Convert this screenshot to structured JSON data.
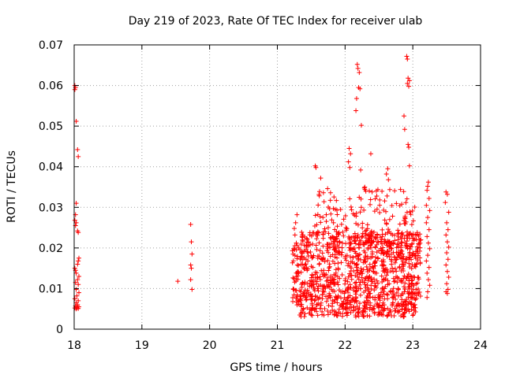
{
  "chart_data": {
    "type": "scatter",
    "title": "Day 219 of 2023, Rate Of TEC Index for receiver ulab",
    "xlabel": "GPS time / hours",
    "ylabel": "ROTI / TECUs",
    "xlim": [
      18,
      24
    ],
    "ylim": [
      0,
      0.07
    ],
    "xticks": [
      18,
      19,
      20,
      21,
      22,
      23,
      24
    ],
    "yticks": [
      0,
      0.01,
      0.02,
      0.03,
      0.04,
      0.05,
      0.06,
      0.07
    ],
    "xtick_labels": [
      "18",
      "19",
      "20",
      "21",
      "22",
      "23",
      "24"
    ],
    "ytick_labels": [
      "0",
      "0.01",
      "0.02",
      "0.03",
      "0.04",
      "0.05",
      "0.06",
      "0.07"
    ],
    "grid": true,
    "marker": "+",
    "color": "#ff0000",
    "series": [
      {
        "name": "ROTI",
        "points": [
          [
            18.01,
            0.06
          ],
          [
            18.02,
            0.0595
          ],
          [
            18.01,
            0.059
          ],
          [
            18.03,
            0.0512
          ],
          [
            18.05,
            0.0442
          ],
          [
            18.06,
            0.0425
          ],
          [
            18.03,
            0.031
          ],
          [
            18.02,
            0.0282
          ],
          [
            18.01,
            0.0268
          ],
          [
            18.03,
            0.0262
          ],
          [
            18.02,
            0.0255
          ],
          [
            18.05,
            0.0242
          ],
          [
            18.06,
            0.0238
          ],
          [
            18.07,
            0.0175
          ],
          [
            18.06,
            0.0168
          ],
          [
            18.05,
            0.016
          ],
          [
            18.01,
            0.015
          ],
          [
            18.02,
            0.0145
          ],
          [
            18.03,
            0.0138
          ],
          [
            18.07,
            0.013
          ],
          [
            18.05,
            0.0122
          ],
          [
            18.02,
            0.0115
          ],
          [
            18.06,
            0.011
          ],
          [
            18.03,
            0.0098
          ],
          [
            18.07,
            0.009
          ],
          [
            18.04,
            0.0082
          ],
          [
            18.01,
            0.0075
          ],
          [
            18.06,
            0.007
          ],
          [
            18.03,
            0.0065
          ],
          [
            18.05,
            0.006
          ],
          [
            18.02,
            0.0057
          ],
          [
            18.07,
            0.0055
          ],
          [
            18.04,
            0.0053
          ],
          [
            18.01,
            0.0052
          ],
          [
            18.06,
            0.0051
          ],
          [
            18.03,
            0.005
          ],
          [
            19.53,
            0.0118
          ],
          [
            19.72,
            0.0258
          ],
          [
            19.73,
            0.0215
          ],
          [
            19.74,
            0.0185
          ],
          [
            19.72,
            0.0158
          ],
          [
            19.73,
            0.015
          ],
          [
            19.72,
            0.0122
          ],
          [
            19.74,
            0.0098
          ],
          [
            21.29,
            0.0282
          ],
          [
            21.27,
            0.0262
          ],
          [
            21.25,
            0.0248
          ],
          [
            21.26,
            0.0232
          ],
          [
            21.28,
            0.0212
          ],
          [
            21.24,
            0.0198
          ],
          [
            21.56,
            0.0402
          ],
          [
            21.57,
            0.0398
          ],
          [
            21.64,
            0.0372
          ],
          [
            22.06,
            0.0445
          ],
          [
            22.08,
            0.0432
          ],
          [
            22.05,
            0.0412
          ],
          [
            22.07,
            0.0398
          ],
          [
            22.18,
            0.0652
          ],
          [
            22.19,
            0.0642
          ],
          [
            22.21,
            0.0632
          ],
          [
            22.2,
            0.0595
          ],
          [
            22.22,
            0.0592
          ],
          [
            22.17,
            0.0568
          ],
          [
            22.16,
            0.0538
          ],
          [
            22.24,
            0.0502
          ],
          [
            22.23,
            0.0392
          ],
          [
            22.38,
            0.0432
          ],
          [
            22.63,
            0.0395
          ],
          [
            22.61,
            0.0382
          ],
          [
            22.64,
            0.0368
          ],
          [
            22.91,
            0.0672
          ],
          [
            22.92,
            0.0665
          ],
          [
            22.93,
            0.0618
          ],
          [
            22.95,
            0.0612
          ],
          [
            22.92,
            0.0605
          ],
          [
            22.94,
            0.0598
          ],
          [
            22.87,
            0.0525
          ],
          [
            22.88,
            0.0492
          ],
          [
            22.93,
            0.0455
          ],
          [
            22.94,
            0.0448
          ],
          [
            22.95,
            0.0402
          ],
          [
            23.23,
            0.0362
          ],
          [
            23.22,
            0.0352
          ],
          [
            23.21,
            0.0342
          ],
          [
            23.49,
            0.0338
          ],
          [
            23.51,
            0.0332
          ],
          [
            23.24,
            0.0322
          ],
          [
            23.2,
            0.0305
          ],
          [
            23.25,
            0.0292
          ],
          [
            23.48,
            0.0312
          ],
          [
            23.53,
            0.0288
          ],
          [
            23.22,
            0.0275
          ],
          [
            23.2,
            0.0262
          ],
          [
            23.24,
            0.0245
          ],
          [
            23.21,
            0.0228
          ],
          [
            23.23,
            0.0212
          ],
          [
            23.25,
            0.0198
          ],
          [
            23.22,
            0.0182
          ],
          [
            23.2,
            0.0168
          ],
          [
            23.24,
            0.0152
          ],
          [
            23.21,
            0.0138
          ],
          [
            23.23,
            0.0122
          ],
          [
            23.25,
            0.0108
          ],
          [
            23.22,
            0.0092
          ],
          [
            23.21,
            0.0078
          ],
          [
            23.5,
            0.0262
          ],
          [
            23.52,
            0.0245
          ],
          [
            23.49,
            0.0232
          ],
          [
            23.51,
            0.0215
          ],
          [
            23.53,
            0.0202
          ],
          [
            23.5,
            0.0188
          ],
          [
            23.52,
            0.0172
          ],
          [
            23.49,
            0.0158
          ],
          [
            23.51,
            0.0142
          ],
          [
            23.53,
            0.0128
          ],
          [
            23.5,
            0.0112
          ],
          [
            23.52,
            0.0098
          ],
          [
            23.49,
            0.0092
          ],
          [
            23.51,
            0.0088
          ]
        ],
        "dense_clusters": [
          {
            "x_range": [
              21.22,
              21.32
            ],
            "y_range": [
              0.0055,
              0.021
            ],
            "count": 45
          },
          {
            "x_range": [
              21.33,
              23.05
            ],
            "y_range": [
              0.003,
              0.024
            ],
            "count": 1000
          },
          {
            "x_range": [
              21.55,
              23.05
            ],
            "y_range": [
              0.02,
              0.035
            ],
            "count": 180
          },
          {
            "x_range": [
              23.05,
              23.12
            ],
            "y_range": [
              0.006,
              0.025
            ],
            "count": 35
          }
        ]
      }
    ]
  }
}
